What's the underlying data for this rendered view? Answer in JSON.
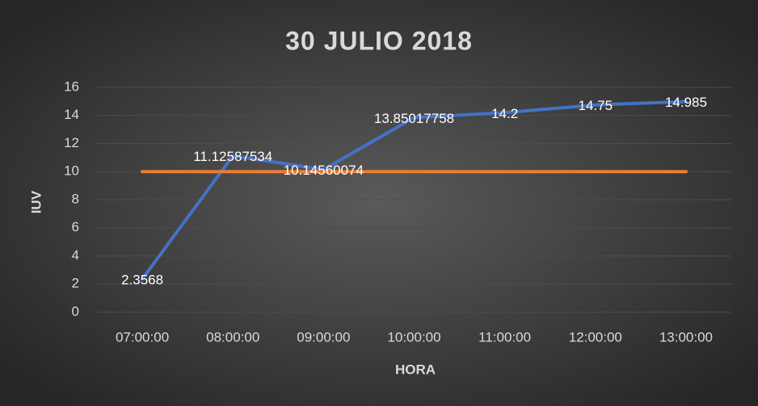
{
  "chart_data": {
    "type": "line",
    "title": "30 JULIO 2018",
    "x_label": "HORA",
    "y_label": "IUV",
    "categories": [
      "07:00:00",
      "08:00:00",
      "09:00:00",
      "10:00:00",
      "11:00:00",
      "12:00:00",
      "13:00:00"
    ],
    "series": [
      {
        "color": "#4472c4",
        "values": [
          2.3568,
          11.12587534,
          10.14560074,
          13.85017758,
          14.2,
          14.75,
          14.985
        ],
        "data_labels": true
      },
      {
        "color": "#ed7d31",
        "values": [
          10,
          10,
          10,
          10,
          10,
          10,
          10
        ],
        "data_labels": false
      }
    ],
    "ylim": [
      0,
      16
    ],
    "yticks": [
      0,
      2,
      4,
      6,
      8,
      10,
      12,
      14,
      16
    ],
    "grid": true
  }
}
